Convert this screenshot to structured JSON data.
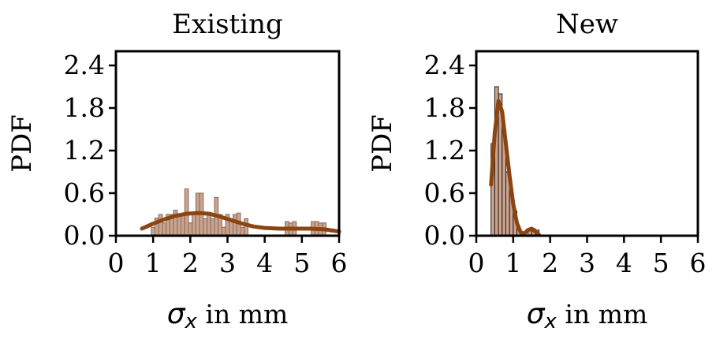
{
  "chart_data": [
    {
      "type": "histogram",
      "title": "Existing",
      "ylabel": "PDF",
      "xlabel": {
        "symbol": "σ",
        "subscript": "x",
        "suffix": " in mm"
      },
      "xlim": [
        0,
        6
      ],
      "ylim": [
        0,
        2.6
      ],
      "xticks": [
        "0",
        "1",
        "2",
        "3",
        "4",
        "5",
        "6"
      ],
      "yticks": [
        "0.0",
        "0.6",
        "1.2",
        "1.8",
        "2.4"
      ],
      "xtick_values": [
        0,
        1,
        2,
        3,
        4,
        5,
        6
      ],
      "ytick_values": [
        0,
        0.6,
        1.2,
        1.8,
        2.4
      ],
      "colors": {
        "bar_fill": "#c9a48f",
        "bar_edge": "#8a6a58",
        "curve": "#8b4513"
      },
      "bins": [
        {
          "x0": 0.95,
          "x1": 1.05,
          "y": 0.12
        },
        {
          "x0": 1.05,
          "x1": 1.15,
          "y": 0.25
        },
        {
          "x0": 1.15,
          "x1": 1.25,
          "y": 0.3
        },
        {
          "x0": 1.25,
          "x1": 1.35,
          "y": 0.18
        },
        {
          "x0": 1.35,
          "x1": 1.45,
          "y": 0.3
        },
        {
          "x0": 1.45,
          "x1": 1.55,
          "y": 0.3
        },
        {
          "x0": 1.55,
          "x1": 1.65,
          "y": 0.36
        },
        {
          "x0": 1.65,
          "x1": 1.75,
          "y": 0.3
        },
        {
          "x0": 1.75,
          "x1": 1.85,
          "y": 0.3
        },
        {
          "x0": 1.85,
          "x1": 1.95,
          "y": 0.66
        },
        {
          "x0": 1.95,
          "x1": 2.05,
          "y": 0.18
        },
        {
          "x0": 2.05,
          "x1": 2.15,
          "y": 0.3
        },
        {
          "x0": 2.15,
          "x1": 2.25,
          "y": 0.6
        },
        {
          "x0": 2.25,
          "x1": 2.35,
          "y": 0.6
        },
        {
          "x0": 2.35,
          "x1": 2.45,
          "y": 0.24
        },
        {
          "x0": 2.45,
          "x1": 2.55,
          "y": 0.3
        },
        {
          "x0": 2.55,
          "x1": 2.65,
          "y": 0.24
        },
        {
          "x0": 2.65,
          "x1": 2.75,
          "y": 0.54
        },
        {
          "x0": 2.75,
          "x1": 2.85,
          "y": 0.3
        },
        {
          "x0": 2.85,
          "x1": 2.95,
          "y": 0.12
        },
        {
          "x0": 2.95,
          "x1": 3.05,
          "y": 0.3
        },
        {
          "x0": 3.05,
          "x1": 3.15,
          "y": 0.2
        },
        {
          "x0": 3.15,
          "x1": 3.25,
          "y": 0.3
        },
        {
          "x0": 3.25,
          "x1": 3.35,
          "y": 0.32
        },
        {
          "x0": 3.35,
          "x1": 3.45,
          "y": 0.12
        },
        {
          "x0": 3.45,
          "x1": 3.55,
          "y": 0.24
        },
        {
          "x0": 4.55,
          "x1": 4.65,
          "y": 0.2
        },
        {
          "x0": 4.65,
          "x1": 4.75,
          "y": 0.18
        },
        {
          "x0": 4.75,
          "x1": 4.85,
          "y": 0.2
        },
        {
          "x0": 5.25,
          "x1": 5.35,
          "y": 0.2
        },
        {
          "x0": 5.35,
          "x1": 5.45,
          "y": 0.2
        },
        {
          "x0": 5.45,
          "x1": 5.55,
          "y": 0.18
        },
        {
          "x0": 5.55,
          "x1": 5.65,
          "y": 0.18
        }
      ],
      "curve": {
        "x": [
          0.7,
          1.0,
          1.3,
          1.6,
          1.9,
          2.2,
          2.5,
          2.8,
          3.1,
          3.4,
          3.7,
          4.0,
          4.4,
          4.8,
          5.2,
          5.6,
          6.0
        ],
        "y": [
          0.1,
          0.17,
          0.23,
          0.28,
          0.31,
          0.32,
          0.31,
          0.27,
          0.22,
          0.17,
          0.13,
          0.11,
          0.1,
          0.1,
          0.1,
          0.09,
          0.06
        ]
      }
    },
    {
      "type": "histogram",
      "title": "New",
      "ylabel": "PDF",
      "xlabel": {
        "symbol": "σ",
        "subscript": "x",
        "suffix": " in mm"
      },
      "xlim": [
        0,
        6
      ],
      "ylim": [
        0,
        2.6
      ],
      "xticks": [
        "0",
        "1",
        "2",
        "3",
        "4",
        "5",
        "6"
      ],
      "yticks": [
        "0.0",
        "0.6",
        "1.2",
        "1.8",
        "2.4"
      ],
      "xtick_values": [
        0,
        1,
        2,
        3,
        4,
        5,
        6
      ],
      "ytick_values": [
        0,
        0.6,
        1.2,
        1.8,
        2.4
      ],
      "colors": {
        "bar_fill": "#c9a48f",
        "bar_edge": "#2a1a12",
        "curve": "#8b4513"
      },
      "bins": [
        {
          "x0": 0.4,
          "x1": 0.5,
          "y": 1.3
        },
        {
          "x0": 0.5,
          "x1": 0.6,
          "y": 2.1
        },
        {
          "x0": 0.6,
          "x1": 0.7,
          "y": 2.0
        },
        {
          "x0": 0.7,
          "x1": 0.8,
          "y": 1.5
        },
        {
          "x0": 0.8,
          "x1": 0.9,
          "y": 0.9
        },
        {
          "x0": 0.9,
          "x1": 1.0,
          "y": 0.6
        },
        {
          "x0": 1.0,
          "x1": 1.1,
          "y": 0.35
        },
        {
          "x0": 1.1,
          "x1": 1.2,
          "y": 0.1
        },
        {
          "x0": 1.2,
          "x1": 1.3,
          "y": 0.02
        },
        {
          "x0": 1.4,
          "x1": 1.5,
          "y": 0.08
        },
        {
          "x0": 1.5,
          "x1": 1.6,
          "y": 0.1
        },
        {
          "x0": 1.6,
          "x1": 1.7,
          "y": 0.08
        }
      ],
      "curve": {
        "x": [
          0.4,
          0.5,
          0.6,
          0.7,
          0.8,
          0.9,
          1.0,
          1.1,
          1.2,
          1.3,
          1.4,
          1.5,
          1.6,
          1.7
        ],
        "y": [
          0.72,
          1.45,
          1.9,
          1.75,
          1.3,
          0.85,
          0.45,
          0.18,
          0.05,
          0.03,
          0.08,
          0.1,
          0.06,
          0.01
        ]
      }
    }
  ]
}
